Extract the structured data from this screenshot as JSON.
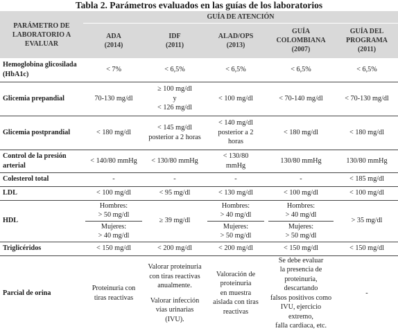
{
  "title": "Tabla 2. Parámetros evaluados en las guías de los laboratorios",
  "header": {
    "param_col": "PARÁMETRO DE LABORATORIO A EVALUAR",
    "group": "GUÍA DE ATENCIÓN",
    "guides": [
      {
        "name": "ADA",
        "year": "(2014)"
      },
      {
        "name": "IDF",
        "year": "(2011)"
      },
      {
        "name": "ALAD/OPS",
        "year": "(2013)"
      },
      {
        "name": "GUÍA COLOMBIANA",
        "year": "(2007)"
      },
      {
        "name": "GUÍA DEL PROGRAMA",
        "year": "(2011)"
      }
    ]
  },
  "rows": {
    "hba1c": {
      "label": "Hemoglobina glicosilada (HbA1c)",
      "ada": "< 7%",
      "idf": "< 6,5%",
      "alad": "< 6,5%",
      "col": "< 6,5%",
      "prog": "< 6,5%"
    },
    "preprandial": {
      "label": "Glicemia prepandial",
      "ada": "70-130 mg/dl",
      "idf_1": "≥ 100 mg/dl",
      "idf_2": "y",
      "idf_3": "< 126 mg/dl",
      "alad": "< 100 mg/dl",
      "col": "< 70-140 mg/dl",
      "prog": "< 70-130 mg/dl"
    },
    "postprandial": {
      "label": "Glicemia postprandial",
      "ada": "< 180 mg/dl",
      "idf_1": "< 145 mg/dl",
      "idf_2": "posterior a 2 horas",
      "alad_1": "< 140 mg/dl",
      "alad_2": "posterior a 2",
      "alad_3": "horas",
      "col": "< 180 mg/dl",
      "prog": "< 180 mg/dl"
    },
    "presion": {
      "label": "Control de la presión arterial",
      "ada": "< 140/80 mmHg",
      "idf": "< 130/80 mmHg",
      "alad_1": "< 130/80",
      "alad_2": "mmHg",
      "col": "130/80 mmHg",
      "prog": "130/80 mmHg"
    },
    "colesterol": {
      "label": "Colesterol total",
      "ada": "-",
      "idf": "-",
      "alad": "-",
      "col": "-",
      "prog": "< 185 mg/dl"
    },
    "ldl": {
      "label": "LDL",
      "ada": "< 100 mg/dl",
      "idf": "< 95 mg/dl",
      "alad": "< 130 mg/dl",
      "col": "< 100 mg/dl",
      "prog": "< 100 mg/dl"
    },
    "hdl": {
      "label": "HDL",
      "ada_h1": "Hombres:",
      "ada_h2": "> 50 mg/dl",
      "ada_m1": "Mujeres:",
      "ada_m2": "> 40 mg/dl",
      "idf": "≥ 39 mg/dl",
      "alad_h1": "Hombres:",
      "alad_h2": "> 40 mg/dl",
      "alad_m1": "Mujeres:",
      "alad_m2": "> 50 mg/dl",
      "col_h1": "Hombres:",
      "col_h2": "> 40 mg/dl",
      "col_m1": "Mujeres:",
      "col_m2": "> 50 mg/dl",
      "prog": "> 35 mg/dl"
    },
    "trigliceridos": {
      "label": "Triglicéridos",
      "ada": "< 150 mg/dl",
      "idf": "< 200 mg/dl",
      "alad": "< 200 mg/dl",
      "col": "< 150 mg/dl",
      "prog": "< 150 mg/dl"
    },
    "orina": {
      "label": "Parcial de orina",
      "ada_1": "Proteinuria con",
      "ada_2": "tiras reactivas",
      "idf_1": "Valorar proteinuria",
      "idf_2": "con tiras reactivas",
      "idf_3": "anualmente.",
      "idf_4": "Valorar infección",
      "idf_5": "vías urinarias",
      "idf_6": "(IVU).",
      "alad_1": "Valoración de",
      "alad_2": "proteinuria",
      "alad_3": "en muestra",
      "alad_4": "aislada con tiras",
      "alad_5": "reactivas",
      "col_1": "Se debe evaluar",
      "col_2": "la presencia de",
      "col_3": "proteinuria, descartando",
      "col_4": "falsos positivos como",
      "col_5": "IVU, ejercicio extremo,",
      "col_6": "falla cardiaca, etc.",
      "prog": "-"
    }
  }
}
